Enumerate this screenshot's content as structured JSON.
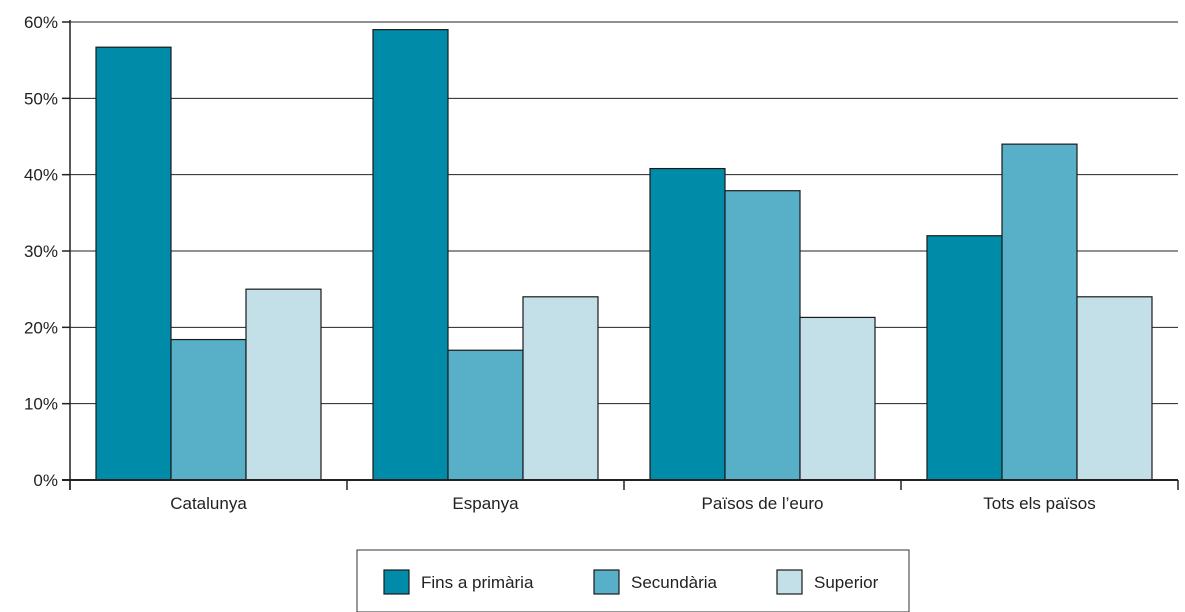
{
  "chart_data": {
    "type": "bar",
    "categories": [
      "Catalunya",
      "Espanya",
      "Països de l’euro",
      "Tots els països"
    ],
    "series": [
      {
        "name": "Fins a primària",
        "color": "#008ba8",
        "values": [
          56.7,
          59.0,
          40.8,
          32.0
        ]
      },
      {
        "name": "Secundària",
        "color": "#58afc8",
        "values": [
          18.4,
          17.0,
          37.9,
          44.0
        ]
      },
      {
        "name": "Superior",
        "color": "#c3dfe8",
        "values": [
          25.0,
          24.0,
          21.3,
          24.0
        ]
      }
    ],
    "ylim": [
      0,
      60
    ],
    "yticks": [
      0,
      10,
      20,
      30,
      40,
      50,
      60
    ],
    "ytick_labels": [
      "0%",
      "10%",
      "20%",
      "30%",
      "40%",
      "50%",
      "60%"
    ],
    "grid": true,
    "legend_position": "bottom-center",
    "title": "",
    "xlabel": "",
    "ylabel": ""
  }
}
